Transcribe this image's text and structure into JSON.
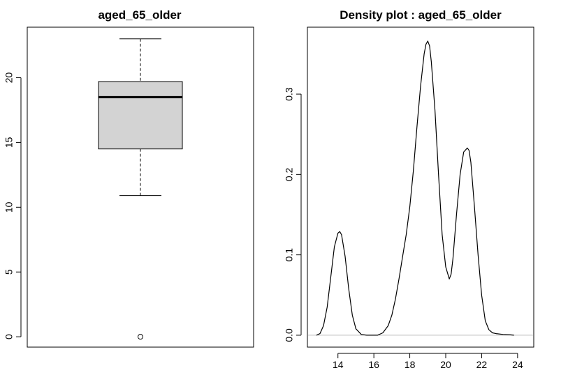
{
  "chart_data": [
    {
      "type": "boxplot",
      "title": "aged_65_older",
      "xlabel": "",
      "ylabel": "",
      "ylim": [
        -0.8,
        23.9
      ],
      "yticks": [
        0,
        5,
        10,
        15,
        20
      ],
      "ytick_labels": [
        "0",
        "5",
        "10",
        "15",
        "20"
      ],
      "box": {
        "whisker_low": 10.9,
        "q1": 14.5,
        "median": 18.5,
        "q3": 19.7,
        "whisker_high": 23.0,
        "outliers": [
          0.0
        ]
      },
      "colors": {
        "box_fill": "#d3d3d3",
        "stroke": "#000000"
      }
    },
    {
      "type": "line",
      "title": "Density plot : aged_65_older",
      "xlabel": "",
      "ylabel": "",
      "xlim": [
        12.3,
        24.9
      ],
      "ylim": [
        -0.0148,
        0.3833
      ],
      "xticks": [
        14,
        16,
        18,
        20,
        22,
        24
      ],
      "xtick_labels": [
        "14",
        "16",
        "18",
        "20",
        "22",
        "24"
      ],
      "yticks": [
        0.0,
        0.1,
        0.2,
        0.3
      ],
      "ytick_labels": [
        "0.0",
        "0.1",
        "0.2",
        "0.3"
      ],
      "baseline": 0,
      "colors": {
        "line": "#000000",
        "baseline": "#bebebe"
      },
      "x": [
        12.8,
        13.0,
        13.2,
        13.4,
        13.6,
        13.8,
        14.0,
        14.1,
        14.2,
        14.4,
        14.6,
        14.8,
        15.0,
        15.3,
        15.6,
        16.2,
        16.5,
        16.8,
        17.0,
        17.2,
        17.4,
        17.6,
        17.8,
        18.0,
        18.2,
        18.4,
        18.6,
        18.8,
        18.9,
        19.0,
        19.1,
        19.2,
        19.4,
        19.6,
        19.8,
        20.0,
        20.2,
        20.3,
        20.4,
        20.6,
        20.8,
        21.0,
        21.2,
        21.3,
        21.4,
        21.6,
        21.8,
        22.0,
        22.2,
        22.4,
        22.6,
        22.8,
        23.2,
        23.6,
        23.8
      ],
      "y": [
        0.0,
        0.002,
        0.012,
        0.035,
        0.072,
        0.11,
        0.127,
        0.129,
        0.125,
        0.098,
        0.058,
        0.025,
        0.008,
        0.001,
        0.0,
        0.0,
        0.003,
        0.012,
        0.025,
        0.045,
        0.07,
        0.098,
        0.125,
        0.16,
        0.205,
        0.26,
        0.31,
        0.35,
        0.362,
        0.366,
        0.36,
        0.34,
        0.28,
        0.2,
        0.125,
        0.085,
        0.07,
        0.076,
        0.095,
        0.15,
        0.2,
        0.228,
        0.233,
        0.23,
        0.215,
        0.16,
        0.1,
        0.05,
        0.018,
        0.007,
        0.003,
        0.002,
        0.001,
        0.0005,
        0.0
      ]
    }
  ]
}
